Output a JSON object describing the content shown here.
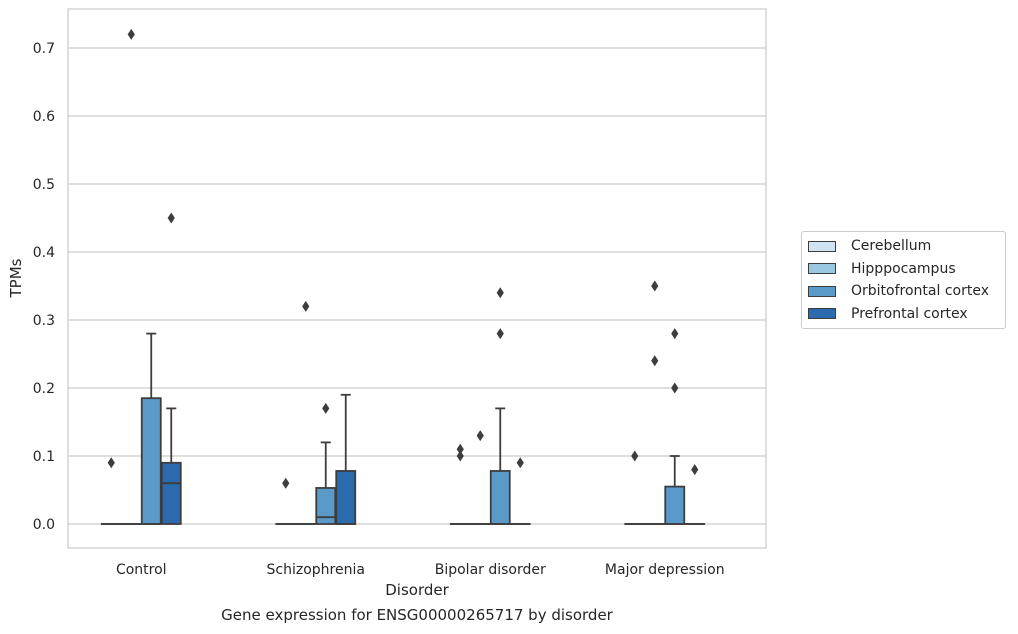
{
  "chart_data": {
    "type": "box",
    "caption": "Gene expression for ENSG00000265717 by disorder",
    "xlabel": "Disorder",
    "ylabel": "TPMs",
    "ylim": [
      -0.035,
      0.755
    ],
    "yticks": [
      "0.0",
      "0.1",
      "0.2",
      "0.3",
      "0.4",
      "0.5",
      "0.6",
      "0.7"
    ],
    "grid": "horizontal",
    "legend_position": "right",
    "categories": [
      "Control",
      "Schizophrenia",
      "Bipolar disorder",
      "Major depression"
    ],
    "series": [
      {
        "name": "Cerebellum",
        "color": "#d1e2f2",
        "boxes": [
          {
            "q1": 0,
            "median": 0,
            "q3": 0,
            "whisker_low": 0,
            "whisker_high": 0,
            "outliers": [
              0.09
            ]
          },
          {
            "q1": 0,
            "median": 0,
            "q3": 0,
            "whisker_low": 0,
            "whisker_high": 0,
            "outliers": [
              0.06
            ]
          },
          {
            "q1": 0,
            "median": 0,
            "q3": 0,
            "whisker_low": 0,
            "whisker_high": 0,
            "outliers": [
              0.1,
              0.11
            ]
          },
          {
            "q1": 0,
            "median": 0,
            "q3": 0,
            "whisker_low": 0,
            "whisker_high": 0,
            "outliers": [
              0.1
            ]
          }
        ]
      },
      {
        "name": "Hipppocampus",
        "color": "#9ac8e0",
        "boxes": [
          {
            "q1": 0,
            "median": 0,
            "q3": 0,
            "whisker_low": 0,
            "whisker_high": 0,
            "outliers": [
              0.72
            ]
          },
          {
            "q1": 0,
            "median": 0,
            "q3": 0,
            "whisker_low": 0,
            "whisker_high": 0,
            "outliers": [
              0.32
            ]
          },
          {
            "q1": 0,
            "median": 0,
            "q3": 0,
            "whisker_low": 0,
            "whisker_high": 0,
            "outliers": [
              0.13
            ]
          },
          {
            "q1": 0,
            "median": 0,
            "q3": 0,
            "whisker_low": 0,
            "whisker_high": 0,
            "outliers": [
              0.24,
              0.35
            ]
          }
        ]
      },
      {
        "name": "Orbitofrontal cortex",
        "color": "#5a9ac9",
        "boxes": [
          {
            "q1": 0,
            "median": 0,
            "q3": 0.185,
            "whisker_low": 0,
            "whisker_high": 0.28,
            "outliers": []
          },
          {
            "q1": 0,
            "median": 0.01,
            "q3": 0.053,
            "whisker_low": 0,
            "whisker_high": 0.12,
            "outliers": [
              0.17
            ]
          },
          {
            "q1": 0,
            "median": 0,
            "q3": 0.078,
            "whisker_low": 0,
            "whisker_high": 0.17,
            "outliers": [
              0.28,
              0.34
            ]
          },
          {
            "q1": 0,
            "median": 0,
            "q3": 0.055,
            "whisker_low": 0,
            "whisker_high": 0.1,
            "outliers": [
              0.2,
              0.28
            ]
          }
        ]
      },
      {
        "name": "Prefrontal cortex",
        "color": "#2a6aad",
        "boxes": [
          {
            "q1": 0,
            "median": 0.06,
            "q3": 0.09,
            "whisker_low": 0,
            "whisker_high": 0.17,
            "outliers": [
              0.45
            ]
          },
          {
            "q1": 0,
            "median": 0,
            "q3": 0.078,
            "whisker_low": 0,
            "whisker_high": 0.19,
            "outliers": []
          },
          {
            "q1": 0,
            "median": 0,
            "q3": 0,
            "whisker_low": 0,
            "whisker_high": 0,
            "outliers": [
              0.09
            ]
          },
          {
            "q1": 0,
            "median": 0,
            "q3": 0,
            "whisker_low": 0,
            "whisker_high": 0,
            "outliers": [
              0.08
            ]
          }
        ]
      }
    ]
  }
}
